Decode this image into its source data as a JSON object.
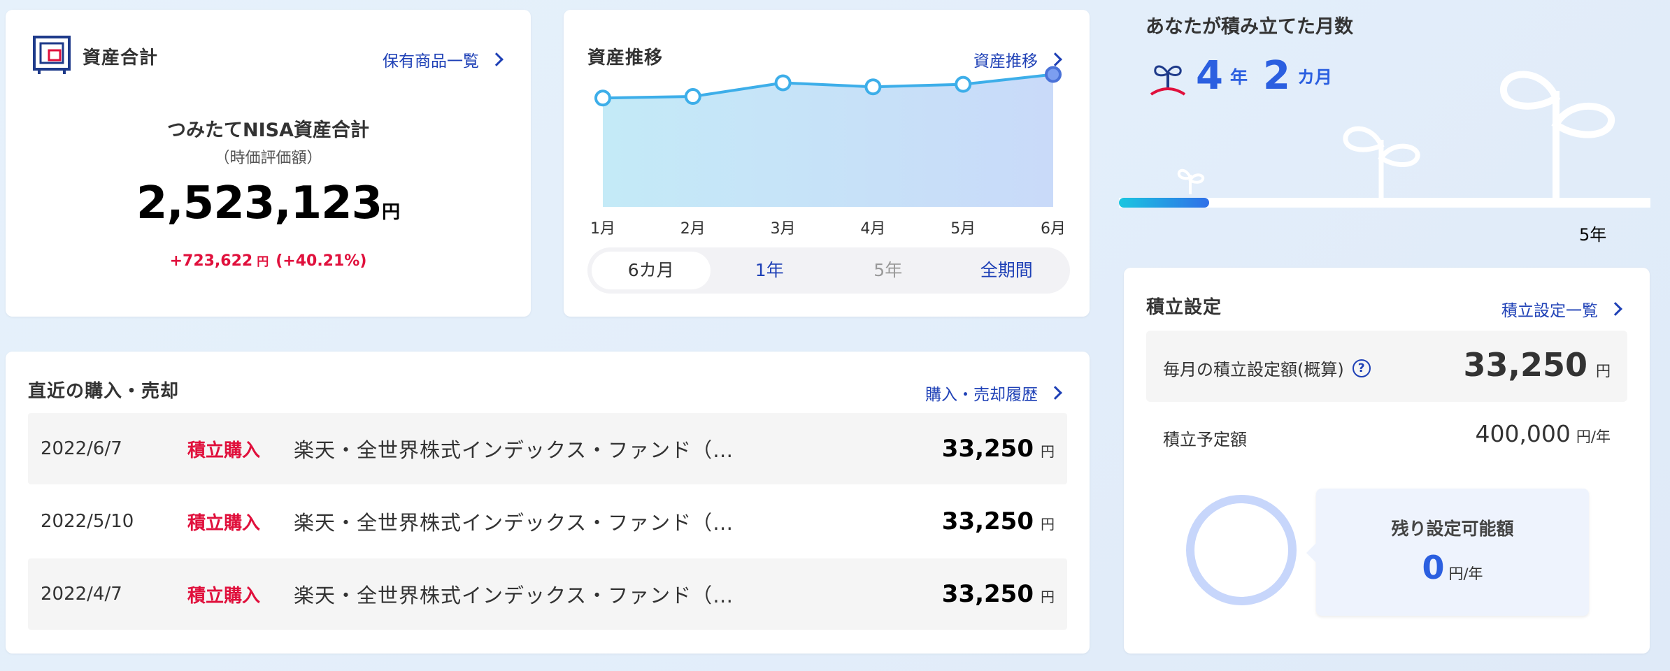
{
  "assets": {
    "title": "資産合計",
    "link": "保有商品一覧",
    "nisa_label": "つみたてNISA資産合計",
    "nisa_sub": "（時価評価額）",
    "value": "2,523,123",
    "unit": "円",
    "gain": "+723,622",
    "gain_unit": "円",
    "gain_pct": "(+40.21%)"
  },
  "chart_card": {
    "title": "資産推移",
    "link": "資産推移",
    "tabs": [
      {
        "label": "6カ月",
        "state": "active"
      },
      {
        "label": "1年",
        "state": "normal"
      },
      {
        "label": "5年",
        "state": "disabled"
      },
      {
        "label": "全期間",
        "state": "normal"
      }
    ]
  },
  "chart_data": {
    "type": "area",
    "categories": [
      "1月",
      "2月",
      "3月",
      "4月",
      "5月",
      "6月"
    ],
    "values": [
      2430000,
      2436000,
      2490000,
      2474000,
      2484000,
      2523123
    ],
    "ylim": [
      2000000,
      2530000
    ],
    "title": "",
    "xlabel": "",
    "ylabel": ""
  },
  "trades": {
    "title": "直近の購入・売却",
    "link": "購入・売却履歴",
    "rows": [
      {
        "date": "2022/6/7",
        "type": "積立購入",
        "fund": "楽天・全世界株式インデックス・ファンド（…",
        "amount": "33,250",
        "unit": "円"
      },
      {
        "date": "2022/5/10",
        "type": "積立購入",
        "fund": "楽天・全世界株式インデックス・ファンド（…",
        "amount": "33,250",
        "unit": "円"
      },
      {
        "date": "2022/4/7",
        "type": "積立購入",
        "fund": "楽天・全世界株式インデックス・ファンド（…",
        "amount": "33,250",
        "unit": "円"
      }
    ]
  },
  "months": {
    "title": "あなたが積み立てた月数",
    "years": "4",
    "years_unit": "年",
    "months": "2",
    "months_unit": "カ月",
    "goal_label": "5年",
    "progress": 0.17
  },
  "settings": {
    "title": "積立設定",
    "link": "積立設定一覧",
    "monthly_label": "毎月の積立設定額(概算)",
    "help": "?",
    "monthly_amount": "33,250",
    "monthly_unit": "円",
    "planned_label": "積立予定額",
    "planned_amount": "400,000",
    "planned_unit": "円/年",
    "remain_label": "残り設定可能額",
    "remain_amount": "0",
    "remain_unit": "円/年"
  },
  "colors": {
    "accent": "#1e40b6",
    "number_blue": "#2b5fe0",
    "red": "#e0103c",
    "line": "#3daee9",
    "progress": "#2b9ee8"
  }
}
